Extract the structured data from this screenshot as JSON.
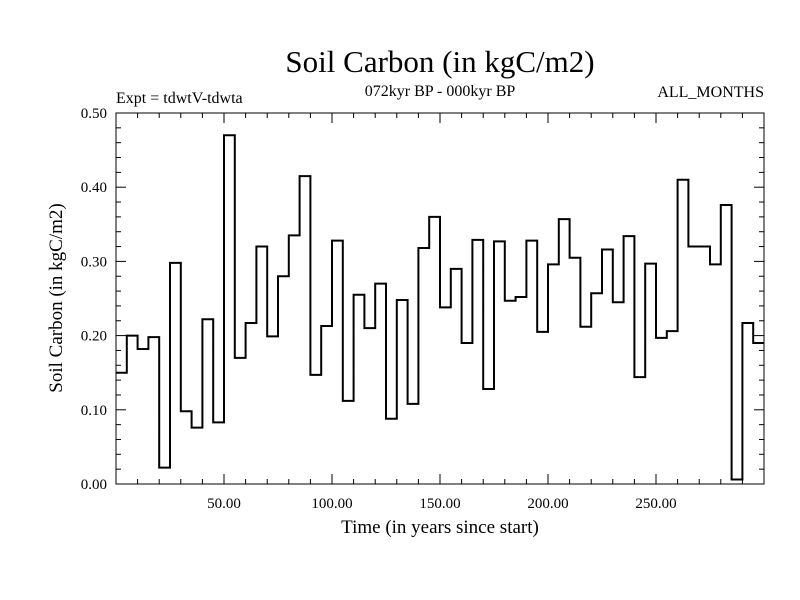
{
  "chart_data": {
    "type": "line",
    "step": true,
    "title": "Soil Carbon (in kgC/m2)",
    "subtitle": "072kyr BP - 000kyr BP",
    "experiment_label": "Expt = tdwtV-tdwta",
    "period_label": "ALL_MONTHS",
    "xlabel": "Time (in years since start)",
    "ylabel": "Soil Carbon (in kgC/m2)",
    "xlim": [
      0,
      300
    ],
    "ylim": [
      0,
      0.5
    ],
    "x_ticks": [
      50,
      100,
      150,
      200,
      250
    ],
    "x_tick_labels": [
      "50.00",
      "100.00",
      "150.00",
      "200.00",
      "250.00"
    ],
    "y_ticks": [
      0,
      0.1,
      0.2,
      0.3,
      0.4,
      0.5
    ],
    "y_tick_labels": [
      "0.00",
      "0.10",
      "0.20",
      "0.30",
      "0.40",
      "0.50"
    ],
    "series": [
      {
        "name": "Soil Carbon",
        "x": [
          0,
          5,
          10,
          15,
          20,
          25,
          30,
          35,
          40,
          45,
          50,
          55,
          60,
          65,
          70,
          75,
          80,
          85,
          90,
          95,
          100,
          105,
          110,
          115,
          120,
          125,
          130,
          135,
          140,
          145,
          150,
          155,
          160,
          165,
          170,
          175,
          180,
          185,
          190,
          195,
          200,
          205,
          210,
          215,
          220,
          225,
          230,
          235,
          240,
          245,
          250,
          255,
          260,
          265,
          270,
          275,
          280,
          285,
          290,
          295,
          300
        ],
        "values": [
          0.15,
          0.2,
          0.182,
          0.198,
          0.022,
          0.298,
          0.098,
          0.076,
          0.222,
          0.083,
          0.47,
          0.17,
          0.217,
          0.32,
          0.199,
          0.28,
          0.335,
          0.415,
          0.147,
          0.213,
          0.328,
          0.112,
          0.255,
          0.21,
          0.27,
          0.088,
          0.248,
          0.108,
          0.318,
          0.36,
          0.238,
          0.29,
          0.19,
          0.329,
          0.128,
          0.327,
          0.247,
          0.252,
          0.328,
          0.205,
          0.296,
          0.357,
          0.305,
          0.212,
          0.257,
          0.316,
          0.245,
          0.334,
          0.144,
          0.297,
          0.197,
          0.206,
          0.41,
          0.32,
          0.32,
          0.296,
          0.376,
          0.006,
          0.217,
          0.19,
          0.19
        ]
      }
    ]
  }
}
